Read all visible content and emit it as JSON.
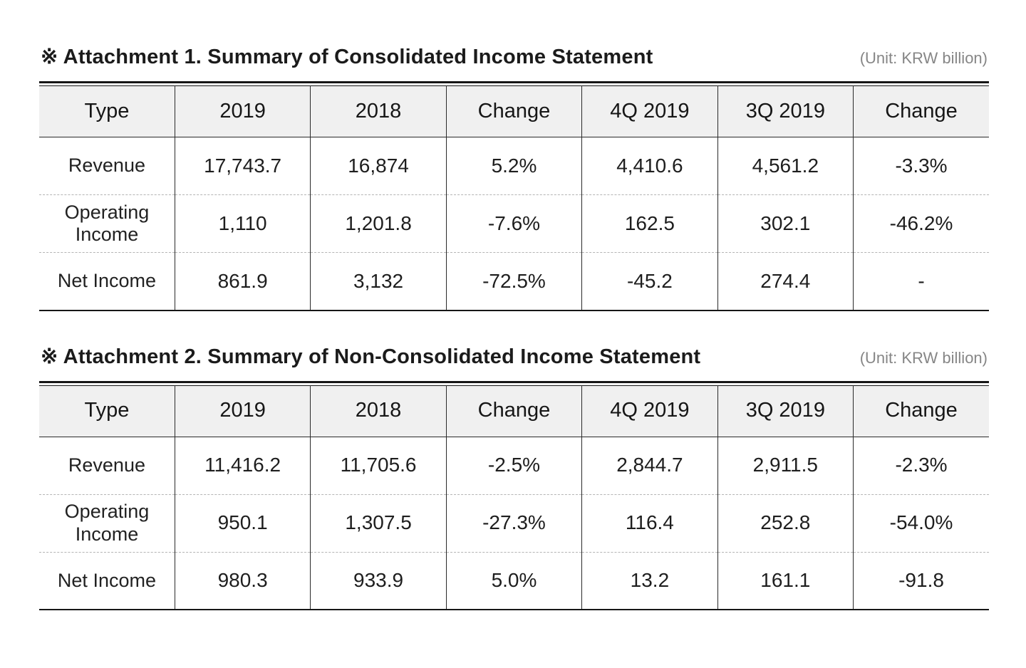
{
  "colors": {
    "text": "#1b1b1b",
    "unit_text": "#868686",
    "header_bg": "#f0f0f0",
    "border": "#161616",
    "dashed_divider": "#b4b4b4",
    "background": "#ffffff"
  },
  "tables": [
    {
      "title": "※ Attachment 1. Summary of Consolidated Income Statement",
      "unit": "(Unit: KRW billion)",
      "headers": [
        "Type",
        "2019",
        "2018",
        "Change",
        "4Q 2019",
        "3Q 2019",
        "Change"
      ],
      "rows": [
        {
          "type": "Revenue",
          "values": [
            "17,743.7",
            "16,874",
            "5.2%",
            "4,410.6",
            "4,561.2",
            "-3.3%"
          ]
        },
        {
          "type": "Operating Income",
          "values": [
            "1,110",
            "1,201.8",
            "-7.6%",
            "162.5",
            "302.1",
            "-46.2%"
          ]
        },
        {
          "type": "Net Income",
          "values": [
            "861.9",
            "3,132",
            "-72.5%",
            "-45.2",
            "274.4",
            "-"
          ]
        }
      ]
    },
    {
      "title": "※ Attachment 2. Summary of Non-Consolidated Income Statement",
      "unit": "(Unit: KRW billion)",
      "headers": [
        "Type",
        "2019",
        "2018",
        "Change",
        "4Q 2019",
        "3Q 2019",
        "Change"
      ],
      "rows": [
        {
          "type": "Revenue",
          "values": [
            "11,416.2",
            "11,705.6",
            "-2.5%",
            "2,844.7",
            "2,911.5",
            "-2.3%"
          ]
        },
        {
          "type": "Operating Income",
          "values": [
            "950.1",
            "1,307.5",
            "-27.3%",
            "116.4",
            "252.8",
            "-54.0%"
          ]
        },
        {
          "type": "Net Income",
          "values": [
            "980.3",
            "933.9",
            "5.0%",
            "13.2",
            "161.1",
            "-91.8"
          ]
        }
      ]
    }
  ]
}
